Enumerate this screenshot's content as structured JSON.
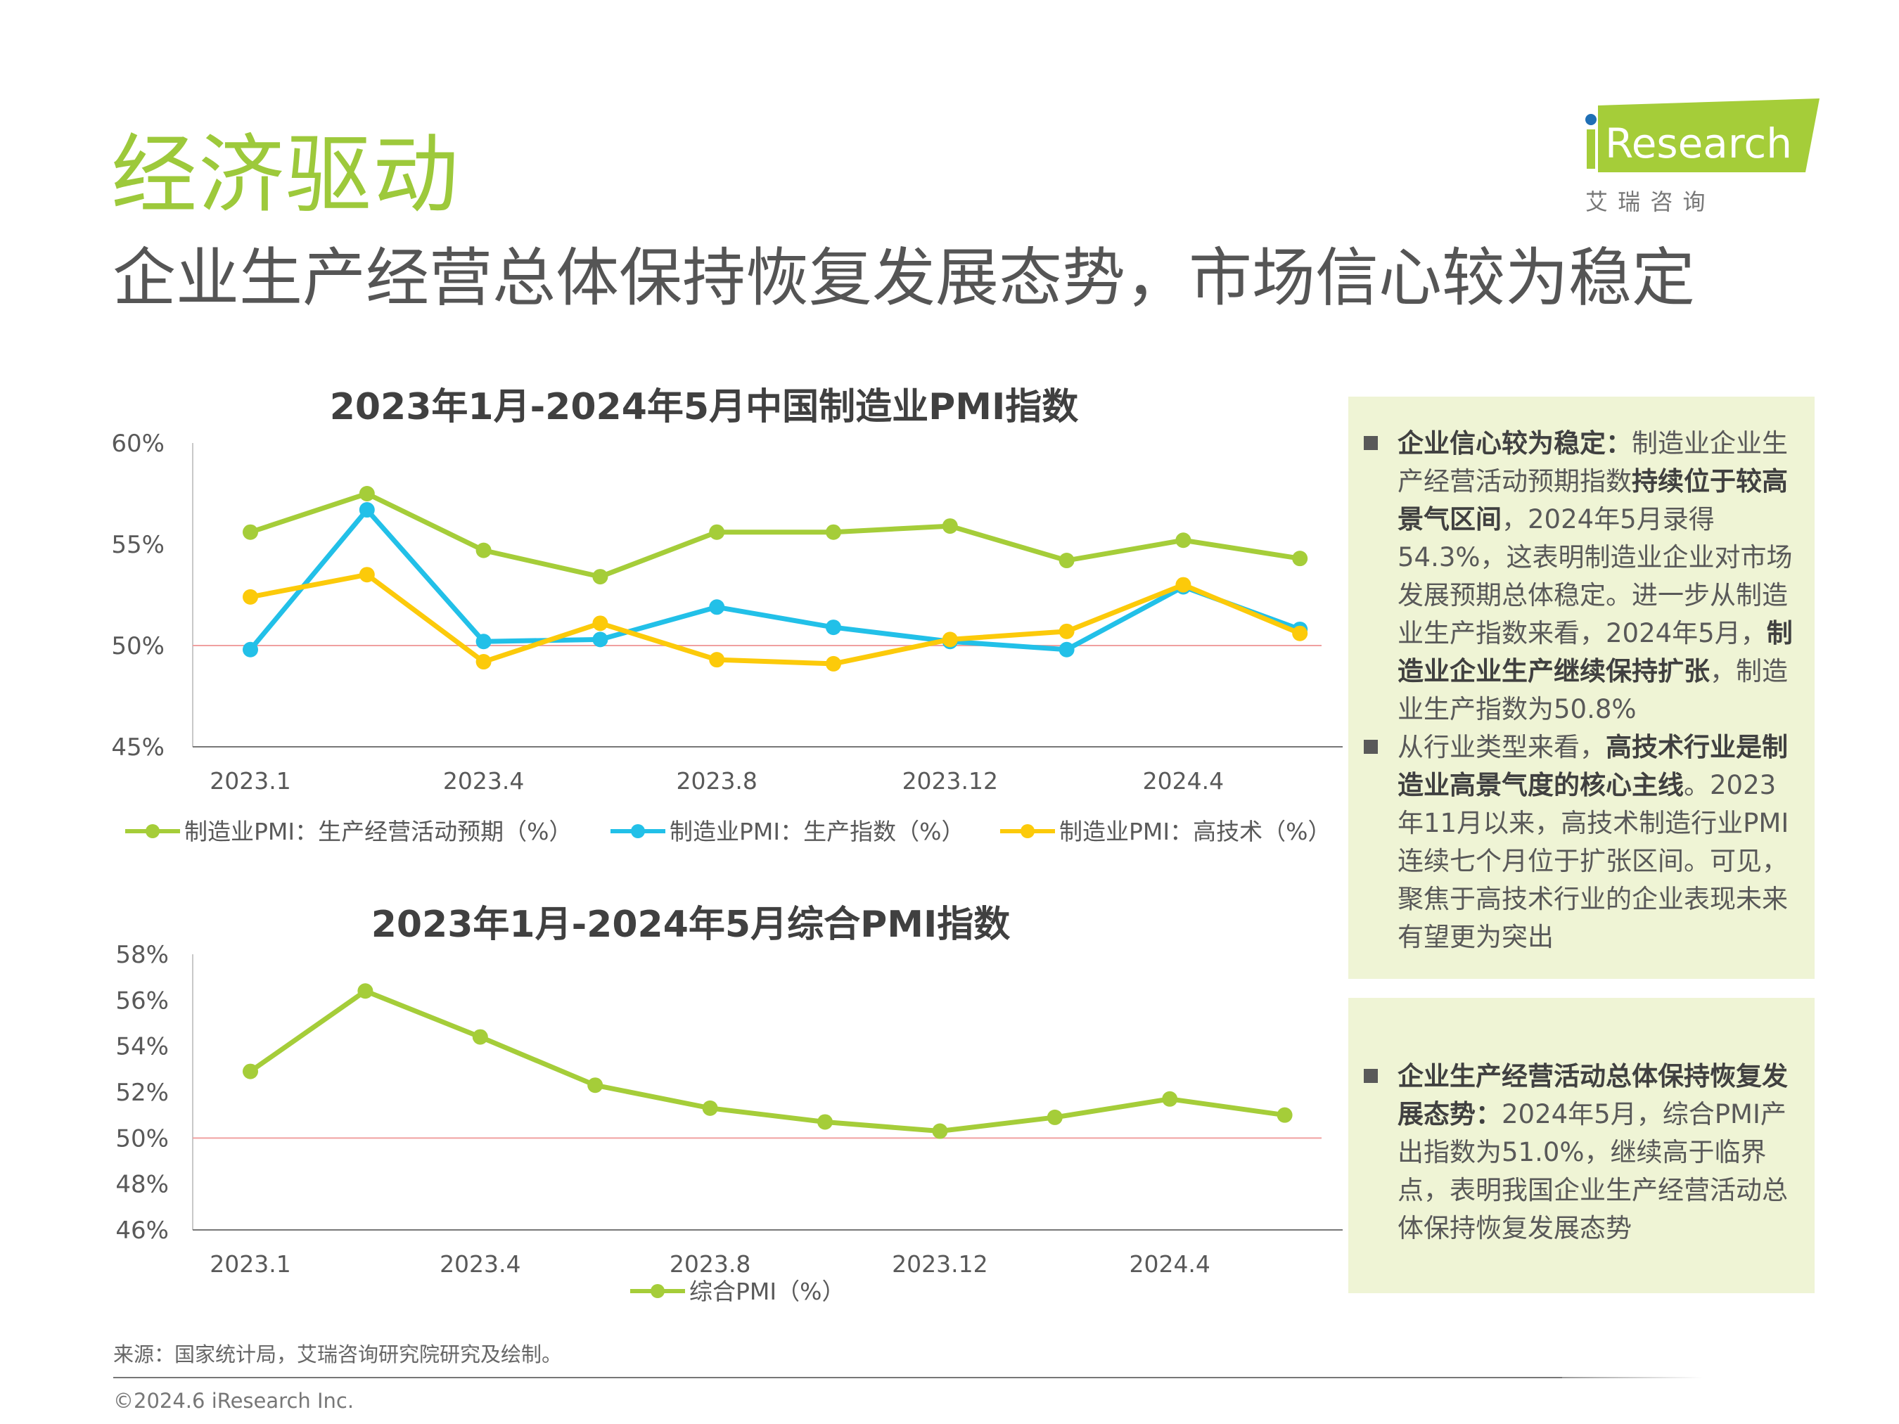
{
  "header": {
    "title": "经济驱动",
    "subtitle": "企业生产经营总体保持恢复发展态势，市场信心较为稳定"
  },
  "logo": {
    "text": "iResearch",
    "tagline": "艾　瑞　咨　询",
    "brand_color": "#a5cd39",
    "dot_color": "#1f6fb5"
  },
  "colors": {
    "green": "#a5cd39",
    "blue": "#22c0e8",
    "yellow": "#fcca0a",
    "threshold": "#f0a0a0",
    "panel_bg": "#eff4d5"
  },
  "chart_data": [
    {
      "type": "line",
      "title": "2023年1月-2024年5月中国制造业PMI指数",
      "categories": [
        "2023.1",
        "",
        "2023.4",
        "",
        "2023.8",
        "",
        "2023.12",
        "",
        "2024.4",
        ""
      ],
      "ylim": [
        45,
        60
      ],
      "yticks": [
        "60%",
        "55%",
        "50%",
        "45%"
      ],
      "ytick_values": [
        60,
        55,
        50,
        45
      ],
      "reference_line": 50,
      "grid": false,
      "legend": "bottom",
      "series": [
        {
          "name": "制造业PMI：生产经营活动预期（%）",
          "color": "#a5cd39",
          "values": [
            55.6,
            57.5,
            54.7,
            53.4,
            55.6,
            55.6,
            55.9,
            54.2,
            55.2,
            54.3
          ]
        },
        {
          "name": "制造业PMI：生产指数（%）",
          "color": "#22c0e8",
          "values": [
            49.8,
            56.7,
            50.2,
            50.3,
            51.9,
            50.9,
            50.2,
            49.8,
            52.9,
            50.8
          ]
        },
        {
          "name": "制造业PMI：高技术（%）",
          "color": "#fcca0a",
          "values": [
            52.4,
            53.5,
            49.2,
            51.1,
            49.3,
            49.1,
            50.3,
            50.7,
            53.0,
            50.6
          ]
        }
      ]
    },
    {
      "type": "line",
      "title": "2023年1月-2024年5月综合PMI指数",
      "categories": [
        "2023.1",
        "",
        "2023.4",
        "",
        "2023.8",
        "",
        "2023.12",
        "",
        "2024.4",
        ""
      ],
      "ylim": [
        46,
        58
      ],
      "yticks": [
        "58%",
        "56%",
        "54%",
        "52%",
        "50%",
        "48%",
        "46%"
      ],
      "ytick_values": [
        58,
        56,
        54,
        52,
        50,
        48,
        46
      ],
      "reference_line": 50,
      "grid": false,
      "legend": "bottom",
      "series": [
        {
          "name": "综合PMI（%）",
          "color": "#a5cd39",
          "values": [
            52.9,
            56.4,
            54.4,
            52.3,
            51.3,
            50.7,
            50.3,
            50.9,
            51.7,
            51.0
          ]
        }
      ]
    }
  ],
  "panels": [
    {
      "bullets": [
        [
          {
            "t": "企业信心较为稳定：",
            "b": true
          },
          {
            "t": "制造业企业生产经营活动预期指数",
            "b": false
          },
          {
            "t": "持续位于较高景气区间",
            "b": true
          },
          {
            "t": "，2024年5月录得54.3%，这表明制造业企业对市场发展预期总体稳定。进一步从制造业生产指数来看，2024年5月，",
            "b": false
          },
          {
            "t": "制造业企业生产继续保持扩张",
            "b": true
          },
          {
            "t": "，制造业生产指数为50.8%",
            "b": false
          }
        ],
        [
          {
            "t": "从行业类型来看，",
            "b": false
          },
          {
            "t": "高技术行业是制造业高景气度的核心主线",
            "b": true
          },
          {
            "t": "。2023年11月以来，高技术制造行业PMI连续七个月位于扩张区间。可见，聚焦于高技术行业的企业表现未来有望更为突出",
            "b": false
          }
        ]
      ]
    },
    {
      "bullets": [
        [
          {
            "t": "企业生产经营活动总体保持恢复发展态势：",
            "b": true
          },
          {
            "t": "2024年5月，综合PMI产出指数为51.0%，继续高于临界点，表明我国企业生产经营活动总体保持恢复发展态势",
            "b": false
          }
        ]
      ]
    }
  ],
  "footer": {
    "source": "来源：国家统计局，艾瑞咨询研究院研究及绘制。",
    "copyright": "©2024.6 iResearch Inc."
  }
}
